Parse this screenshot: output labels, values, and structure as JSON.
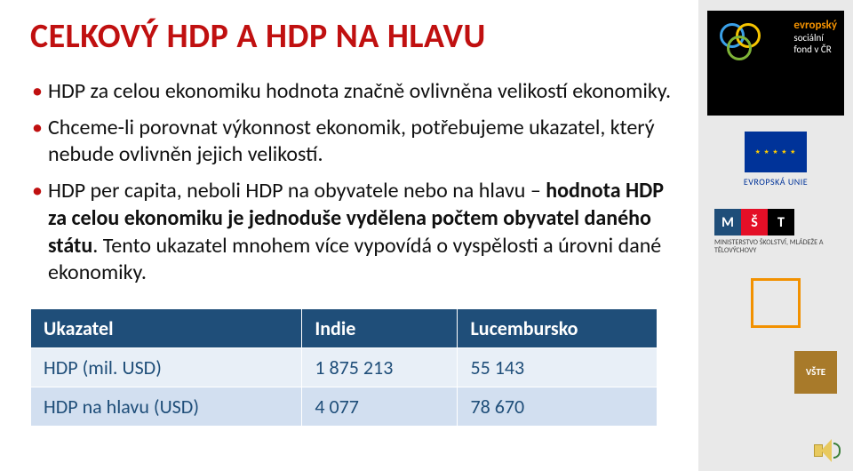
{
  "title": {
    "text": "CELKOVÝ HDP A HDP NA HLAVU",
    "color": "#c01010"
  },
  "bullets": [
    {
      "text": "HDP za celou ekonomiku hodnota značně ovlivněna velikostí ekonomiky."
    },
    {
      "text": "Chceme-li porovnat výkonnost ekonomik, potřebujeme ukazatel, který nebude ovlivněn jejich velikostí."
    },
    {
      "html": "HDP per capita, neboli HDP na obyvatele nebo na hlavu – <b>hodnota HDP za celou ekonomiku je jednoduše vydělena počtem obyvatel daného státu</b>. Tento ukazatel mnohem více vypovídá o vyspělosti a úrovni dané ekonomiky."
    }
  ],
  "table": {
    "header_bg": "#1f4e79",
    "header_color": "#ffffff",
    "row_bg_odd": "#e8eff7",
    "row_bg_even": "#d2dff0",
    "cell_color": "#1f4e79",
    "columns": [
      "Ukazatel",
      "Indie",
      "Lucembursko"
    ],
    "rows": [
      [
        "HDP (mil. USD)",
        "1 875 213",
        "55 143"
      ],
      [
        "HDP na hlavu (USD)",
        "4 077",
        "78 670"
      ]
    ]
  },
  "logos": {
    "esf": {
      "line1": "evropský",
      "line2": "sociální",
      "line3": "fond v ČR"
    },
    "eu_label": "EVROPSKÁ UNIE",
    "msmt": {
      "letters": [
        "M",
        "Š",
        "T"
      ],
      "caption": "MINISTERSTVO ŠKOLSTVÍ, MLÁDEŽE A TĚLOVÝCHOVY"
    },
    "vste": "VŠTE"
  }
}
